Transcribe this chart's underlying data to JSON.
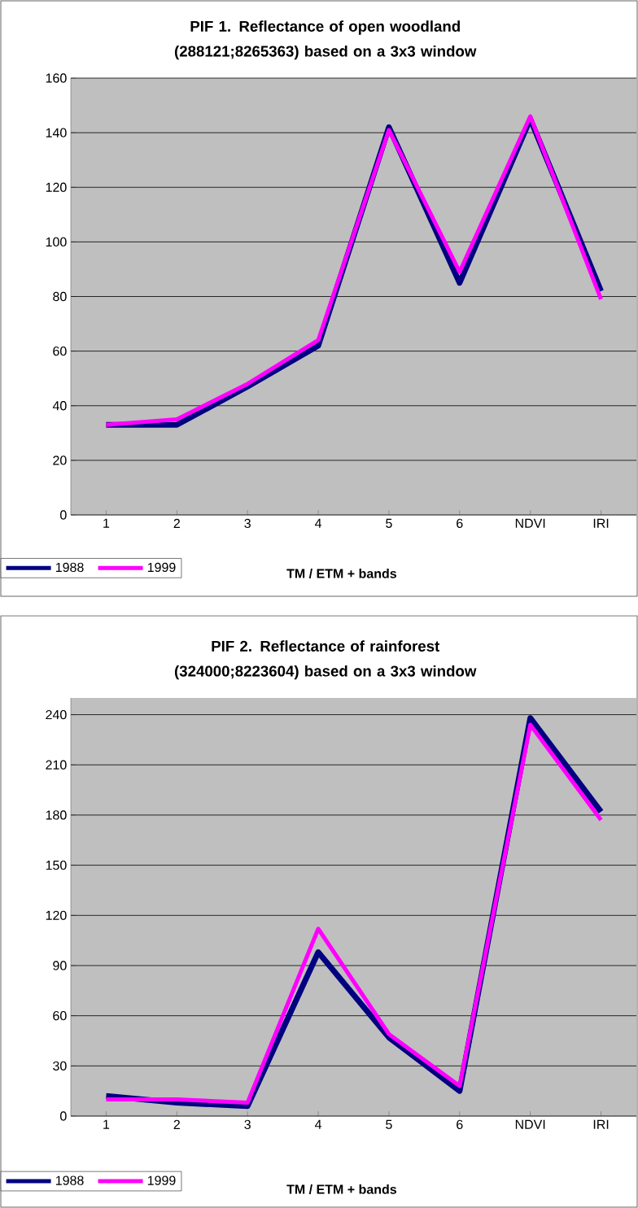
{
  "chart_data": [
    {
      "type": "line",
      "title": "PIF 1. Reflectance of open woodland (288121;8265363) based on a 3x3 window",
      "xlabel": "TM / ETM + bands",
      "categories": [
        "1",
        "2",
        "3",
        "4",
        "5",
        "6",
        "NDVI",
        "IRI"
      ],
      "series": [
        {
          "name": "1988",
          "color": "#000080",
          "values": [
            33,
            33,
            47,
            62,
            142,
            85,
            145,
            82
          ]
        },
        {
          "name": "1999",
          "color": "#ff00ff",
          "values": [
            33,
            35,
            48,
            64,
            141,
            89,
            146,
            79
          ]
        }
      ],
      "ylim": [
        0,
        160
      ],
      "yticks": [
        0,
        20,
        40,
        60,
        80,
        100,
        120,
        140,
        160
      ],
      "grid": "y",
      "legend": "bottom left"
    },
    {
      "type": "line",
      "title": "PIF 2. Reflectance of rainforest (324000;8223604) based on a 3x3 window",
      "xlabel": "TM / ETM + bands",
      "categories": [
        "1",
        "2",
        "3",
        "4",
        "5",
        "6",
        "NDVI",
        "IRI"
      ],
      "series": [
        {
          "name": "1988",
          "color": "#000080",
          "values": [
            12,
            8,
            6,
            98,
            47,
            15,
            238,
            182
          ]
        },
        {
          "name": "1999",
          "color": "#ff00ff",
          "values": [
            10,
            10,
            8,
            112,
            49,
            18,
            234,
            177
          ]
        }
      ],
      "ylim": [
        0,
        250
      ],
      "yticks": [
        0,
        30,
        60,
        90,
        120,
        150,
        180,
        210,
        240
      ],
      "grid": "y",
      "legend": "bottom left"
    }
  ]
}
